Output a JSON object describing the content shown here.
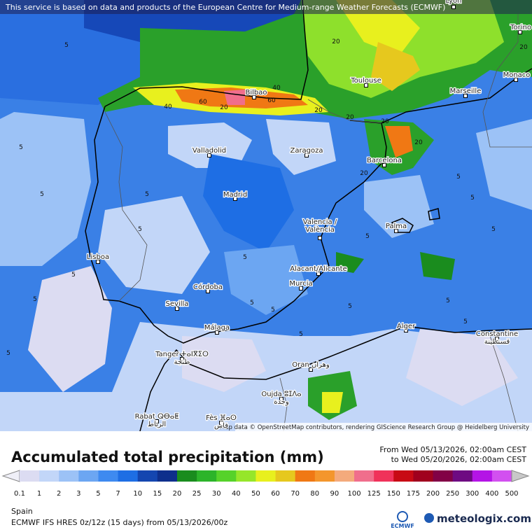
{
  "banner": "This service is based on data and products of the European Centre for Medium-range Weather Forecasts (ECMWF)",
  "map": {
    "cities": [
      {
        "lines": [
          "Lyon"
        ]
      },
      {
        "lines": [
          "Torino"
        ]
      },
      {
        "lines": [
          "Monaco"
        ]
      },
      {
        "lines": [
          "Marseille"
        ]
      },
      {
        "lines": [
          "Toulouse"
        ]
      },
      {
        "lines": [
          "Bilbao"
        ]
      },
      {
        "lines": [
          "Valladolid"
        ]
      },
      {
        "lines": [
          "Zaragoza"
        ]
      },
      {
        "lines": [
          "Barcelona"
        ]
      },
      {
        "lines": [
          "Madrid"
        ]
      },
      {
        "lines": [
          "Valencia /",
          "València"
        ]
      },
      {
        "lines": [
          "Palma"
        ]
      },
      {
        "lines": [
          "Lisboa"
        ]
      },
      {
        "lines": [
          "Alacant/Alicante"
        ]
      },
      {
        "lines": [
          "Murcia"
        ]
      },
      {
        "lines": [
          "Córdoba"
        ]
      },
      {
        "lines": [
          "Sevilla"
        ]
      },
      {
        "lines": [
          "Málaga"
        ]
      },
      {
        "lines": [
          "Alger"
        ]
      },
      {
        "lines": [
          "Constantine",
          "قسنطينة"
        ]
      },
      {
        "lines": [
          "Tanger ⵜⴰⵏⴳⵉⵔ",
          "طنجة"
        ]
      },
      {
        "lines": [
          "Oran وهران"
        ]
      },
      {
        "lines": [
          "Oujda ⵓⵊⴷⴰ",
          "وجدة"
        ]
      },
      {
        "lines": [
          "Rabat ⵕⴱⴰⵟ",
          "الرباط"
        ]
      },
      {
        "lines": [
          "Fès ⴼⴰⵙ",
          "فاس"
        ]
      }
    ],
    "contours": [
      "5",
      "5",
      "5",
      "5",
      "5",
      "5",
      "5",
      "5",
      "5",
      "5",
      "5",
      "5",
      "5",
      "5",
      "5",
      "5",
      "5",
      "5",
      "5",
      "20",
      "20",
      "20",
      "20",
      "20",
      "40",
      "40",
      "60",
      "60",
      "20",
      "20",
      "20"
    ],
    "credit": "Map data © OpenStreetMap contributors, rendering GIScience Research Group @ Heidelberg University"
  },
  "title": "Accumulated total precipitation (mm)",
  "period": {
    "from": "From Wed 05/13/2026, 02:00am CEST",
    "to": "to Wed 05/20/2026, 02:00am CEST"
  },
  "legend": {
    "ticks": [
      0.1,
      1,
      2,
      3,
      5,
      7,
      10,
      15,
      20,
      25,
      30,
      40,
      50,
      60,
      70,
      80,
      90,
      100,
      125,
      150,
      175,
      200,
      250,
      300,
      400,
      500
    ],
    "colors": [
      "#dcdcf2",
      "#c2d6f8",
      "#9cc2f6",
      "#6ca6f2",
      "#3e8af0",
      "#1e6ee4",
      "#1446b0",
      "#0e2f8c",
      "#1a8c1e",
      "#2cb42a",
      "#56d22a",
      "#96e62a",
      "#e8f01e",
      "#e6c81e",
      "#f07814",
      "#f4962c",
      "#f4aa7c",
      "#f06e8c",
      "#f0325a",
      "#c80a14",
      "#a0001e",
      "#820046",
      "#6e0a82",
      "#b414e6",
      "#d250f0"
    ],
    "extra_colors": [
      "#e696f4",
      "#f0c8f8",
      "#f8e6fc",
      "#c8c8c8"
    ]
  },
  "region": "Spain",
  "model": "ECMWF IFS HRES 0z/12z (15 days) from  05/13/2026/00z",
  "logos": {
    "ecmwf": "ECMWF",
    "meteologix": "meteologix.com"
  }
}
